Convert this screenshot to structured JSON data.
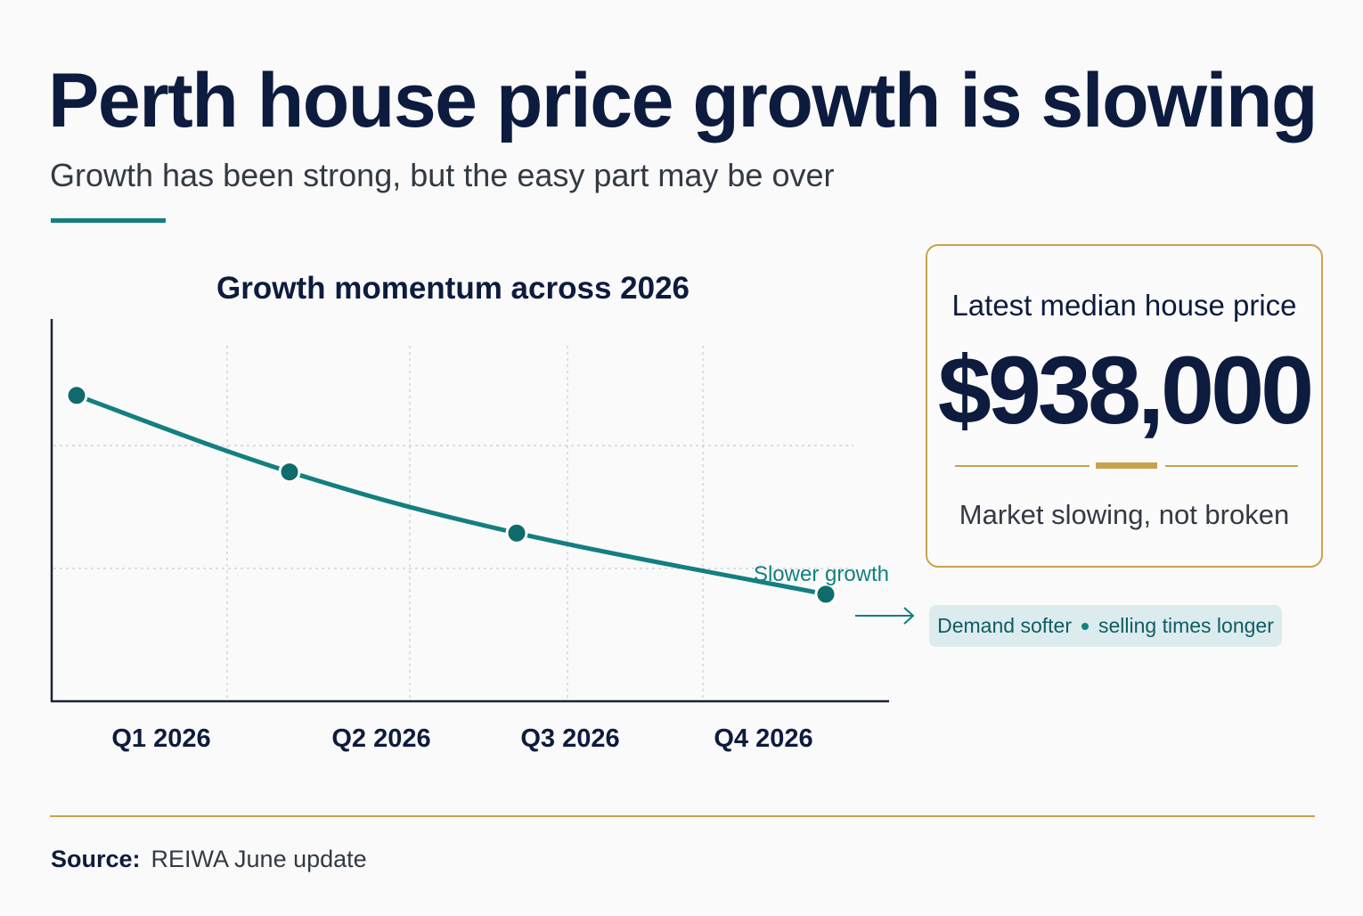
{
  "header": {
    "title": "Perth house price growth is slowing",
    "subtitle": "Growth has been strong, but the easy part may be over"
  },
  "chart_data": {
    "type": "line",
    "title": "Growth momentum across 2026",
    "xlabel": "",
    "ylabel": "",
    "categories": [
      "Q1 2026",
      "Q2 2026",
      "Q3 2026",
      "Q4 2026"
    ],
    "series": [
      {
        "values": [
          4,
          3,
          2.2,
          1.4
        ]
      }
    ],
    "ylim": [
      0,
      5
    ],
    "y_ticks_shown": false,
    "grid": true,
    "line_color": "#137f80",
    "annotation": "Slower growth"
  },
  "stat_card": {
    "label": "Latest median house price",
    "value": "$938,000",
    "caption": "Market slowing, not broken"
  },
  "callout": {
    "part1": "Demand softer",
    "part2": "selling times longer"
  },
  "footer": {
    "source_label": "Source:",
    "source_text": "REIWA June update"
  },
  "colors": {
    "navy": "#0d1b3e",
    "teal": "#137f80",
    "gold": "#c9a24c",
    "pill_bg": "#dcecee"
  },
  "icons": {
    "callout_arrow": "arrow-right-icon",
    "separator": "bullet-icon"
  }
}
